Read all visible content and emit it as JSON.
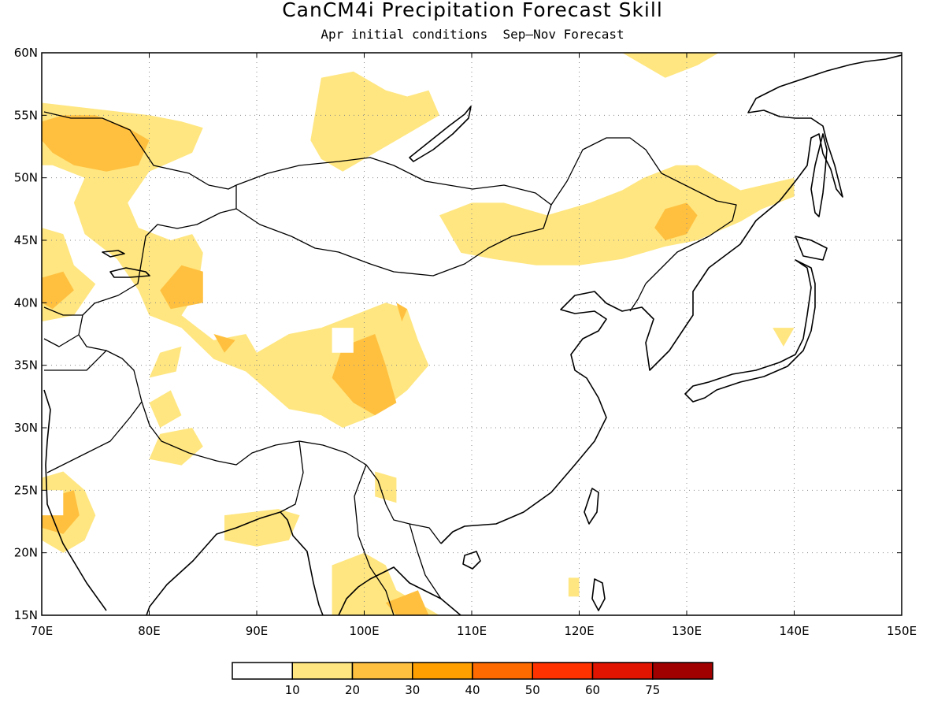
{
  "title": "CanCM4i Precipitation Forecast Skill",
  "subtitle": "Apr initial conditions  Sep—Nov Forecast",
  "map": {
    "lon_range": [
      70,
      150
    ],
    "lat_range": [
      15,
      60
    ],
    "lon_ticks": [
      {
        "value": 70,
        "label": "70E"
      },
      {
        "value": 80,
        "label": "80E"
      },
      {
        "value": 90,
        "label": "90E"
      },
      {
        "value": 100,
        "label": "100E"
      },
      {
        "value": 110,
        "label": "110E"
      },
      {
        "value": 120,
        "label": "120E"
      },
      {
        "value": 130,
        "label": "130E"
      },
      {
        "value": 140,
        "label": "140E"
      },
      {
        "value": 150,
        "label": "150E"
      }
    ],
    "lat_ticks": [
      {
        "value": 15,
        "label": "15N"
      },
      {
        "value": 20,
        "label": "20N"
      },
      {
        "value": 25,
        "label": "25N"
      },
      {
        "value": 30,
        "label": "30N"
      },
      {
        "value": 35,
        "label": "35N"
      },
      {
        "value": 40,
        "label": "40N"
      },
      {
        "value": 45,
        "label": "45N"
      },
      {
        "value": 50,
        "label": "50N"
      },
      {
        "value": 55,
        "label": "55N"
      },
      {
        "value": 60,
        "label": "60N"
      }
    ],
    "grid": true,
    "skill_regions": [
      {
        "level": 1,
        "points": [
          [
            70,
            56
          ],
          [
            75,
            55.5
          ],
          [
            80,
            55
          ],
          [
            83,
            54.5
          ],
          [
            85,
            54
          ],
          [
            84,
            52
          ],
          [
            80,
            50.5
          ],
          [
            78,
            48
          ],
          [
            79,
            46
          ],
          [
            82,
            45
          ],
          [
            84,
            45.5
          ],
          [
            85,
            44
          ],
          [
            84.5,
            41
          ],
          [
            83,
            39
          ],
          [
            86,
            37
          ],
          [
            89,
            37.5
          ],
          [
            90,
            36
          ],
          [
            93,
            37.5
          ],
          [
            96,
            38
          ],
          [
            99,
            39
          ],
          [
            102,
            40
          ],
          [
            104,
            39.5
          ],
          [
            105,
            37
          ],
          [
            106,
            35
          ],
          [
            104,
            33
          ],
          [
            101,
            31
          ],
          [
            98,
            30
          ],
          [
            96,
            31
          ],
          [
            93,
            31.5
          ],
          [
            91,
            33
          ],
          [
            89,
            34.5
          ],
          [
            86,
            35.5
          ],
          [
            83,
            38
          ],
          [
            80,
            39
          ],
          [
            79,
            41
          ],
          [
            77,
            43.5
          ],
          [
            74,
            45.5
          ],
          [
            73,
            48
          ],
          [
            74,
            50
          ],
          [
            71,
            51
          ],
          [
            70,
            51
          ]
        ]
      },
      {
        "level": 1,
        "points": [
          [
            70,
            46
          ],
          [
            72,
            45.5
          ],
          [
            73,
            43
          ],
          [
            75,
            41.5
          ],
          [
            73,
            39
          ],
          [
            70,
            38.5
          ]
        ]
      },
      {
        "level": 1,
        "points": [
          [
            81,
            36
          ],
          [
            83,
            36.5
          ],
          [
            82.5,
            34.5
          ],
          [
            80,
            34
          ]
        ]
      },
      {
        "level": 1,
        "points": [
          [
            80,
            32
          ],
          [
            82,
            33
          ],
          [
            83,
            31
          ],
          [
            81,
            30
          ]
        ]
      },
      {
        "level": 1,
        "points": [
          [
            81,
            29.5
          ],
          [
            84,
            30
          ],
          [
            85,
            28.5
          ],
          [
            83,
            27
          ],
          [
            80,
            27.5
          ]
        ]
      },
      {
        "level": 1,
        "points": [
          [
            87,
            23
          ],
          [
            92,
            23.5
          ],
          [
            94,
            23
          ],
          [
            93,
            21
          ],
          [
            90,
            20.5
          ],
          [
            87,
            21
          ]
        ]
      },
      {
        "level": 1,
        "points": [
          [
            97,
            19
          ],
          [
            100,
            20
          ],
          [
            102,
            19
          ],
          [
            103,
            17
          ],
          [
            105,
            16
          ],
          [
            106,
            15
          ],
          [
            97,
            15
          ]
        ]
      },
      {
        "level": 1,
        "points": [
          [
            70,
            26
          ],
          [
            72,
            26.5
          ],
          [
            74,
            25
          ],
          [
            75,
            23
          ],
          [
            74,
            21
          ],
          [
            72,
            20
          ],
          [
            70,
            21
          ]
        ]
      },
      {
        "level": 1,
        "points": [
          [
            101,
            26.5
          ],
          [
            103,
            26
          ],
          [
            103,
            24
          ],
          [
            101,
            24.5
          ]
        ]
      },
      {
        "level": 1,
        "points": [
          [
            103,
            15
          ],
          [
            105,
            16
          ],
          [
            107,
            15
          ]
        ]
      },
      {
        "level": 1,
        "points": [
          [
            96,
            58
          ],
          [
            99,
            58.5
          ],
          [
            102,
            57
          ],
          [
            104,
            56.5
          ],
          [
            106,
            57
          ],
          [
            107,
            55
          ],
          [
            104,
            53.5
          ],
          [
            101,
            52
          ],
          [
            98,
            50.5
          ],
          [
            96,
            51.5
          ],
          [
            95,
            53
          ]
        ]
      },
      {
        "level": 1,
        "points": [
          [
            107,
            47
          ],
          [
            110,
            48
          ],
          [
            113,
            48
          ],
          [
            117,
            47
          ],
          [
            121,
            48
          ],
          [
            124,
            49
          ],
          [
            126,
            50
          ],
          [
            129,
            51
          ],
          [
            131,
            51
          ],
          [
            132,
            50.5
          ],
          [
            135,
            49
          ],
          [
            140,
            50
          ],
          [
            140,
            48.5
          ],
          [
            137,
            47.5
          ],
          [
            135,
            46.5
          ],
          [
            131,
            45
          ],
          [
            128,
            44.5
          ],
          [
            124,
            43.5
          ],
          [
            120,
            43
          ],
          [
            116,
            43
          ],
          [
            112,
            43.5
          ],
          [
            109,
            44
          ]
        ]
      },
      {
        "level": 1,
        "points": [
          [
            120,
            60
          ],
          [
            124,
            60
          ],
          [
            126,
            59
          ],
          [
            128,
            58
          ],
          [
            131,
            59
          ],
          [
            133,
            60
          ]
        ]
      },
      {
        "level": 1,
        "points": [
          [
            138,
            38
          ],
          [
            140,
            38
          ],
          [
            139,
            36.5
          ]
        ]
      },
      {
        "level": 1,
        "points": [
          [
            119,
            18
          ],
          [
            120,
            18
          ],
          [
            120,
            16.5
          ],
          [
            119,
            16.5
          ]
        ]
      },
      {
        "level": 2,
        "points": [
          [
            70,
            54.5
          ],
          [
            72,
            55
          ],
          [
            75,
            55
          ],
          [
            78,
            54
          ],
          [
            80,
            53
          ],
          [
            79,
            51
          ],
          [
            76,
            50.5
          ],
          [
            73,
            51
          ],
          [
            71,
            52
          ],
          [
            70,
            53
          ]
        ]
      },
      {
        "level": 2,
        "points": [
          [
            81,
            41
          ],
          [
            83,
            43
          ],
          [
            85,
            42.5
          ],
          [
            85,
            40
          ],
          [
            82,
            39.5
          ]
        ]
      },
      {
        "level": 2,
        "points": [
          [
            98,
            36.5
          ],
          [
            101,
            37.5
          ],
          [
            102,
            35
          ],
          [
            103,
            32
          ],
          [
            101,
            31
          ],
          [
            99,
            32
          ],
          [
            97,
            34
          ]
        ]
      },
      {
        "level": 2,
        "points": [
          [
            127,
            46
          ],
          [
            128,
            47.5
          ],
          [
            130,
            48
          ],
          [
            131,
            47
          ],
          [
            130,
            45.5
          ],
          [
            128,
            45
          ]
        ]
      },
      {
        "level": 2,
        "points": [
          [
            70,
            42
          ],
          [
            72,
            42.5
          ],
          [
            73,
            41
          ],
          [
            71,
            39.5
          ],
          [
            70,
            40
          ]
        ]
      },
      {
        "level": 2,
        "points": [
          [
            71,
            24.5
          ],
          [
            73,
            25
          ],
          [
            73.5,
            23
          ],
          [
            72,
            21.5
          ],
          [
            70,
            22
          ],
          [
            70,
            24
          ]
        ]
      },
      {
        "level": 2,
        "points": [
          [
            86,
            37.5
          ],
          [
            88,
            37
          ],
          [
            87,
            36
          ]
        ]
      },
      {
        "level": 2,
        "points": [
          [
            103,
            40
          ],
          [
            104,
            39.5
          ],
          [
            103.5,
            38.5
          ]
        ]
      },
      {
        "level": 2,
        "points": [
          [
            102,
            16
          ],
          [
            105,
            17
          ],
          [
            106,
            15
          ],
          [
            103,
            15
          ]
        ]
      }
    ],
    "holes": [
      {
        "points": [
          [
            70,
            25
          ],
          [
            72,
            25
          ],
          [
            72,
            23
          ],
          [
            70,
            23
          ]
        ]
      },
      {
        "points": [
          [
            97,
            38
          ],
          [
            99,
            38
          ],
          [
            99,
            36
          ],
          [
            97,
            36
          ]
        ]
      }
    ]
  },
  "colorbar": {
    "colors": [
      "#ffffff",
      "#ffe680",
      "#ffc040",
      "#ffa000",
      "#ff6a00",
      "#ff3200",
      "#e01400",
      "#a00000"
    ],
    "labels": [
      "10",
      "20",
      "30",
      "40",
      "50",
      "60",
      "75"
    ]
  },
  "chart_data": {
    "type": "heatmap",
    "title": "CanCM4i Precipitation Forecast Skill",
    "subtitle": "Apr initial conditions  Sep—Nov Forecast",
    "x_range": [
      70,
      150
    ],
    "y_range": [
      15,
      60
    ],
    "bins": [
      0,
      10,
      20,
      30,
      40,
      50,
      60,
      75
    ],
    "colorbar_labels": [
      "10",
      "20",
      "30",
      "40",
      "50",
      "60",
      "75"
    ],
    "grid": true
  }
}
